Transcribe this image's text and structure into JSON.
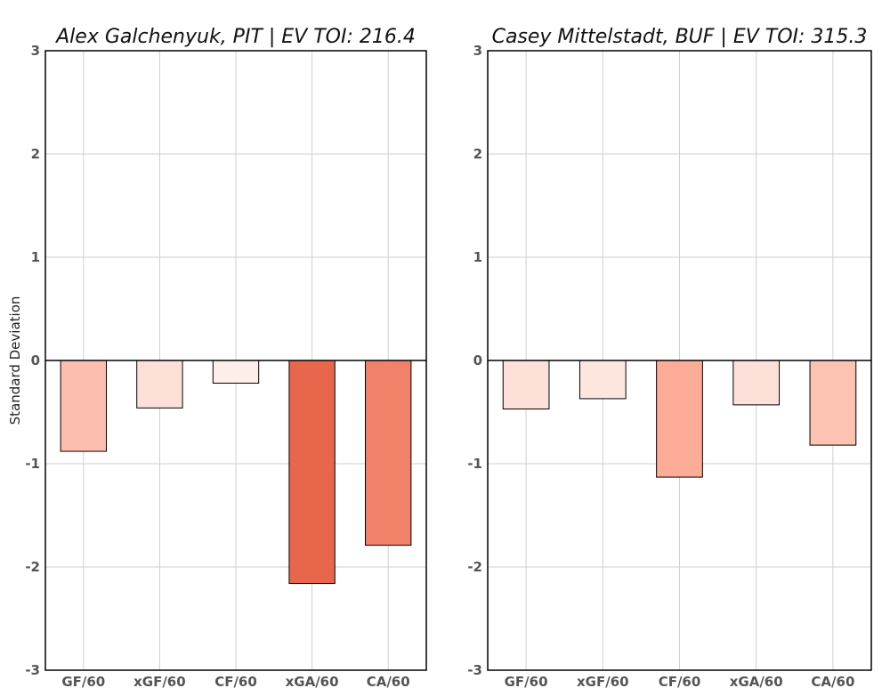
{
  "ylabel": "Standard Deviation",
  "chart_data": [
    {
      "type": "bar",
      "title": "Alex Galchenyuk, PIT  |  EV TOI: 216.4",
      "ylabel": "Standard Deviation",
      "categories": [
        "GF/60",
        "xGF/60",
        "CF/60",
        "xGA/60",
        "CA/60"
      ],
      "values": [
        -0.88,
        -0.46,
        -0.22,
        -2.16,
        -1.79
      ],
      "colors": [
        "#fcbfaf",
        "#fde0d8",
        "#feeee9",
        "#e8664c",
        "#f28169"
      ],
      "ylim": [
        -3,
        3
      ],
      "yticks": [
        -3,
        -2,
        -1,
        0,
        1,
        2,
        3
      ],
      "grid": true
    },
    {
      "type": "bar",
      "title": "Casey Mittelstadt, BUF  |  EV TOI: 315.3",
      "ylabel": "",
      "categories": [
        "GF/60",
        "xGF/60",
        "CF/60",
        "xGA/60",
        "CA/60"
      ],
      "values": [
        -0.47,
        -0.37,
        -1.13,
        -0.43,
        -0.82
      ],
      "colors": [
        "#fde0d8",
        "#fde6de",
        "#fcac97",
        "#fde1d8",
        "#fcc2b2"
      ],
      "ylim": [
        -3,
        3
      ],
      "yticks": [
        -3,
        -2,
        -1,
        0,
        1,
        2,
        3
      ],
      "grid": true
    }
  ]
}
